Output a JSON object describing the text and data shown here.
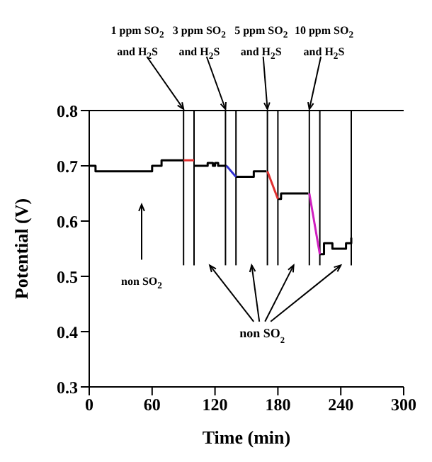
{
  "chart_data": {
    "type": "step",
    "xlabel": "Time (min)",
    "ylabel": "Potential (V)",
    "xlim": [
      0,
      300
    ],
    "xticks": [
      0,
      60,
      120,
      180,
      240,
      300
    ],
    "ylim": [
      0.3,
      0.8
    ],
    "yticks": [
      0.3,
      0.4,
      0.5,
      0.6,
      0.7,
      0.8
    ],
    "series": [
      {
        "color": "#000000",
        "x": [
          0,
          6,
          60,
          69,
          90,
          95,
          100,
          113,
          118,
          120,
          123,
          131,
          135,
          140,
          157,
          169,
          175,
          180,
          183,
          209,
          215,
          220,
          224,
          232,
          245,
          250
        ],
        "values": [
          0.7,
          0.69,
          0.7,
          0.71,
          0.71,
          null,
          0.7,
          0.705,
          0.7,
          0.705,
          0.7,
          0.7,
          null,
          0.68,
          0.69,
          0.69,
          null,
          0.64,
          0.65,
          0.65,
          null,
          0.54,
          0.56,
          0.55,
          0.56,
          0.57
        ]
      },
      {
        "type": "line",
        "color": "#e03030",
        "x": [
          90,
          100
        ],
        "values": [
          0.71,
          0.71
        ]
      },
      {
        "type": "line",
        "color": "#3030d0",
        "x": [
          131,
          140
        ],
        "values": [
          0.7,
          0.68
        ]
      },
      {
        "type": "line",
        "color": "#e03030",
        "x": [
          170,
          180
        ],
        "values": [
          0.69,
          0.64
        ]
      },
      {
        "type": "line",
        "color": "#d020c0",
        "x": [
          210,
          220
        ],
        "values": [
          0.65,
          0.54
        ]
      }
    ],
    "ref_lines": [
      {
        "axis": "x",
        "value": 90
      },
      {
        "axis": "x",
        "value": 100
      },
      {
        "axis": "x",
        "value": 130
      },
      {
        "axis": "x",
        "value": 140
      },
      {
        "axis": "x",
        "value": 170
      },
      {
        "axis": "x",
        "value": 180
      },
      {
        "axis": "x",
        "value": 210
      },
      {
        "axis": "x",
        "value": 220
      },
      {
        "axis": "x",
        "value": 250
      }
    ],
    "annotations": [
      "1 ppm SO$_{2}$ and H$_{2}$S",
      "3 ppm SO$_{2}$ and H$_{2}$S",
      "5 ppm SO$_{2}$ and H$_{2}$S",
      "10 ppm SO$_{2}$ and H$_{2}$S",
      "non SO$_{2}$",
      "non SO$_{2}$"
    ]
  }
}
